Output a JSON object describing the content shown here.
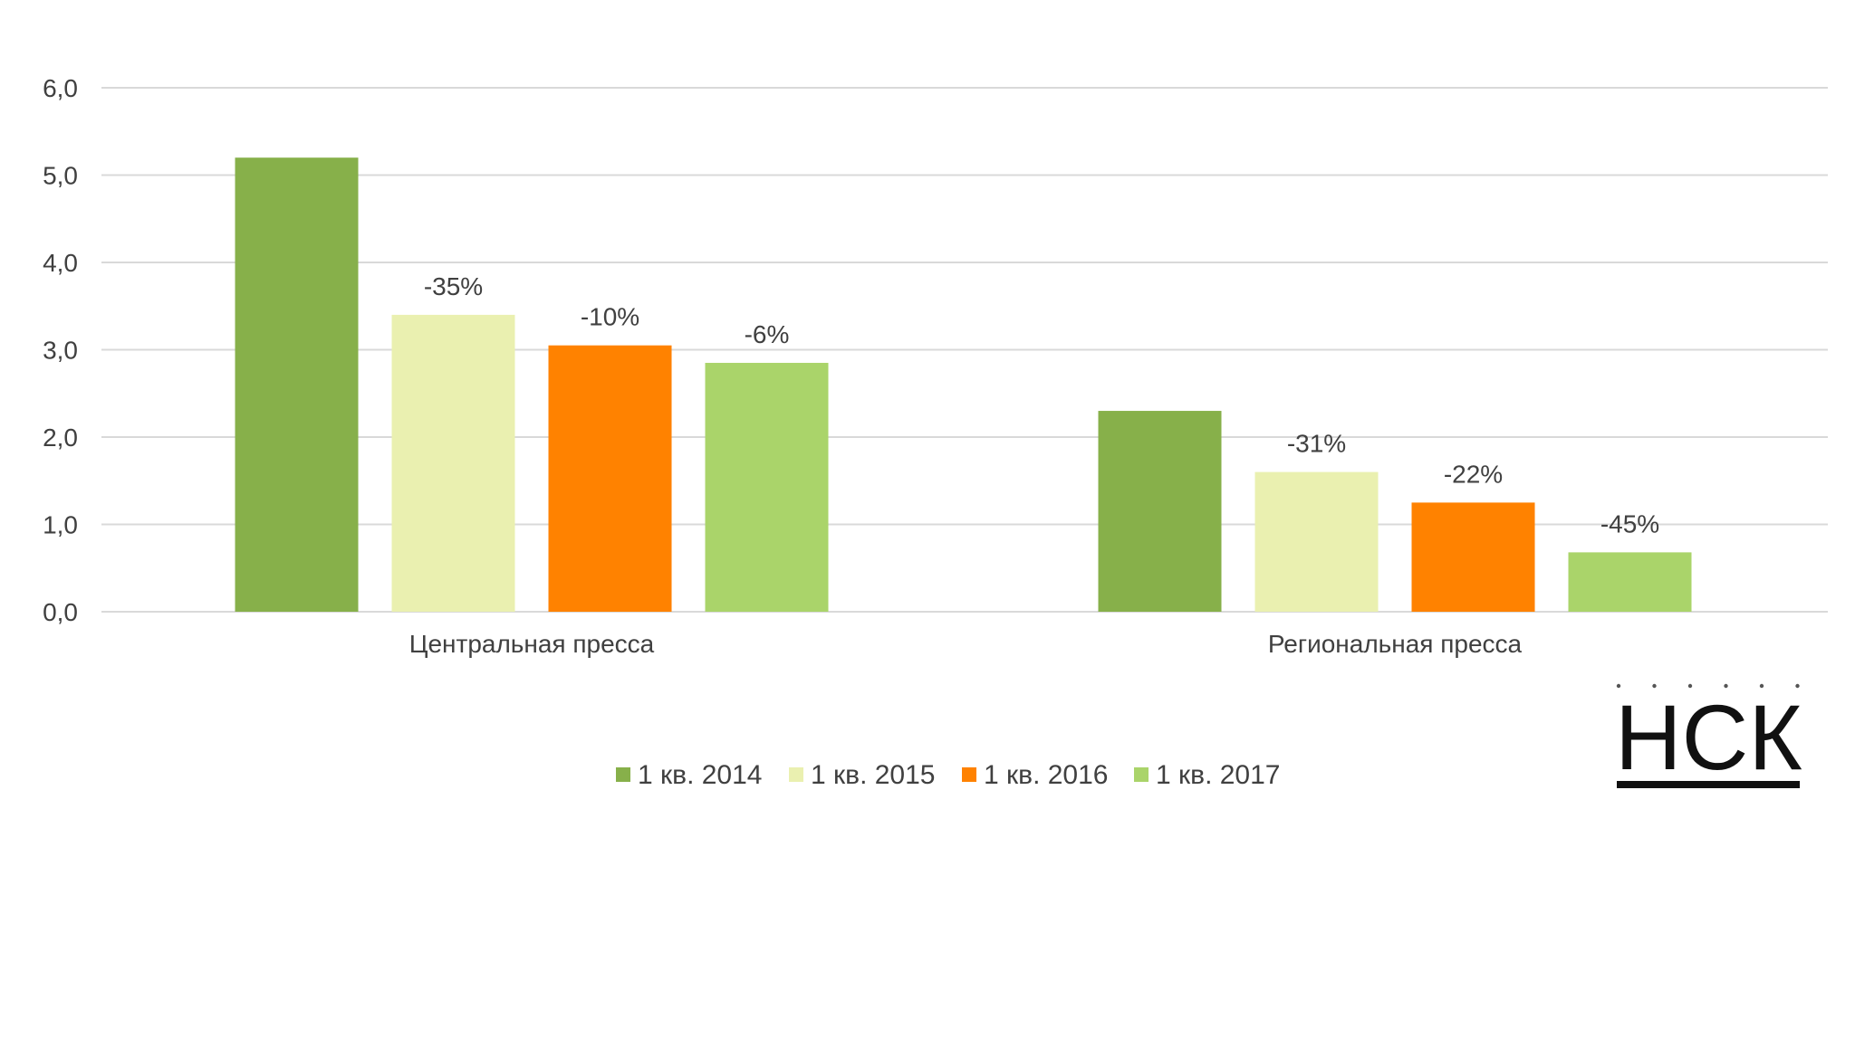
{
  "chart_data": {
    "type": "bar",
    "categories": [
      "Центральная пресса",
      "Региональная пресса"
    ],
    "series": [
      {
        "name": "1 кв. 2014",
        "values": [
          5.2,
          2.3
        ],
        "labels": [
          "",
          ""
        ]
      },
      {
        "name": "1 кв. 2015",
        "values": [
          3.4,
          1.6
        ],
        "labels": [
          "-35%",
          "-31%"
        ]
      },
      {
        "name": "1 кв. 2016",
        "values": [
          3.05,
          1.25
        ],
        "labels": [
          "-10%",
          "-22%"
        ]
      },
      {
        "name": "1 кв. 2017",
        "values": [
          2.85,
          0.68
        ],
        "labels": [
          "-6%",
          "-45%"
        ]
      }
    ],
    "colors": [
      "#87B04A",
      "#EAF0B0",
      "#FF8200",
      "#AAD46A"
    ],
    "yticks": [
      "0,0",
      "1,0",
      "2,0",
      "3,0",
      "4,0",
      "5,0",
      "6,0"
    ],
    "ylim": [
      0,
      6
    ],
    "grid": true,
    "legend_position": "bottom",
    "title": "",
    "xlabel": "",
    "ylabel": ""
  },
  "logo": {
    "text": "НСК"
  }
}
